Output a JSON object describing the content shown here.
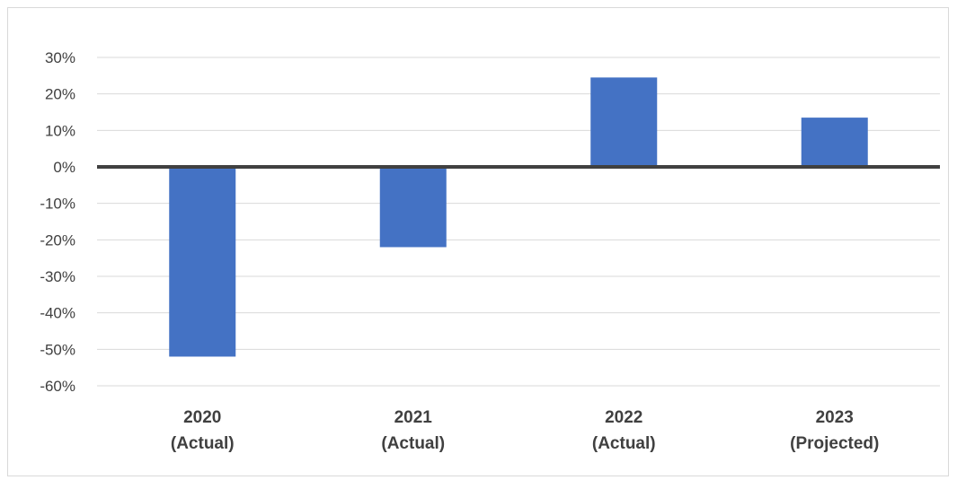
{
  "chart_data": {
    "type": "bar",
    "categories": [
      [
        "2020",
        "(Actual)"
      ],
      [
        "2021",
        "(Actual)"
      ],
      [
        "2022",
        "(Actual)"
      ],
      [
        "2023",
        "(Projected)"
      ]
    ],
    "values": [
      -52,
      -22,
      24.5,
      13.5
    ],
    "ylim": [
      -60,
      30
    ],
    "y_ticks": [
      "30%",
      "20%",
      "10%",
      "0%",
      "-10%",
      "-20%",
      "-30%",
      "-40%",
      "-50%",
      "-60%"
    ],
    "y_tick_values": [
      30,
      20,
      10,
      0,
      -10,
      -20,
      -30,
      -40,
      -50,
      -60
    ],
    "title": "",
    "xlabel": "",
    "ylabel": "",
    "grid": true,
    "legend": "none",
    "colors": {
      "bar": "#4472c4",
      "grid": "#d9d9d9",
      "zero_line": "#404040",
      "text": "#404040"
    }
  }
}
